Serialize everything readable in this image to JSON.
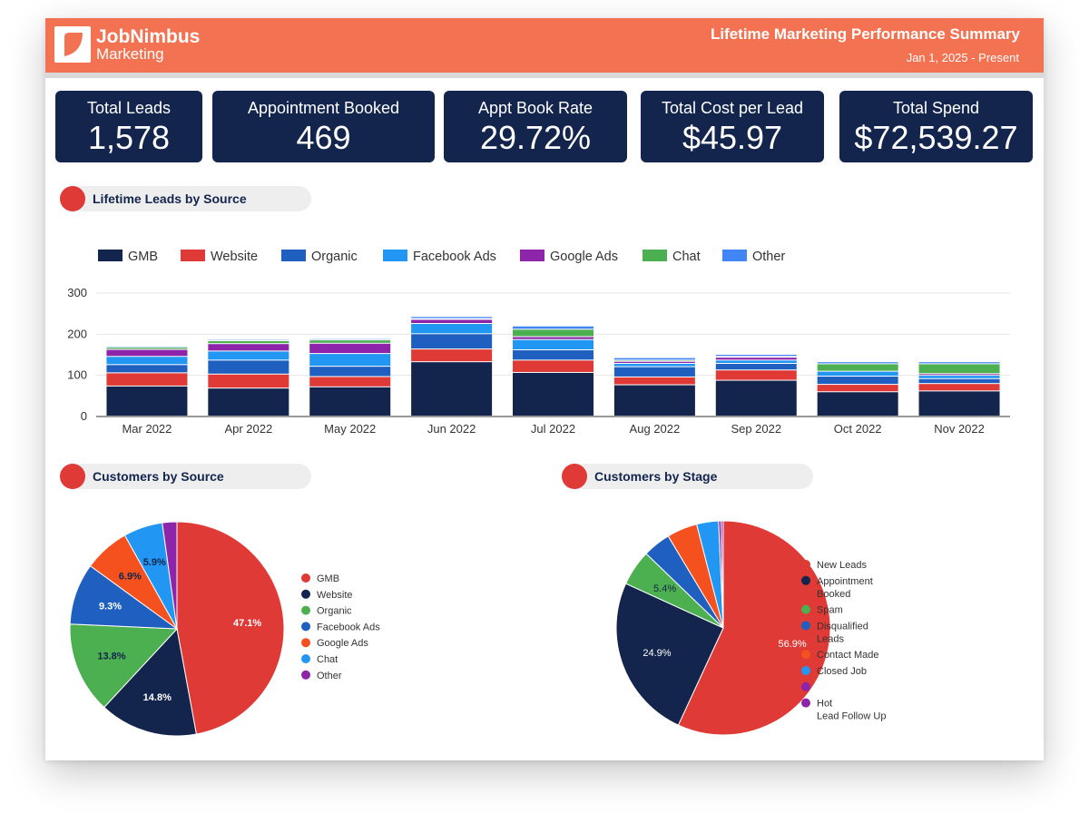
{
  "header": {
    "brand": "JobNimbus",
    "brand_sub": "Marketing",
    "title": "Lifetime Marketing Performance Summary",
    "date_range": "Jan 1, 2025 - Present"
  },
  "kpis": [
    {
      "label": "Total Leads",
      "value": "1,578"
    },
    {
      "label": "Appointment Booked",
      "value": "469"
    },
    {
      "label": "Appt Book Rate",
      "value": "29.72%"
    },
    {
      "label": "Total Cost per Lead",
      "value": "$45.97"
    },
    {
      "label": "Total Spend",
      "value": "$72,539.27"
    }
  ],
  "sections": {
    "leads_by_source": "Lifetime Leads by Source",
    "customers_by_source": "Customers by Source",
    "customers_by_stage": "Customers by Stage"
  },
  "colors": {
    "header": "#f37251",
    "kpi_bg": "#13254c",
    "section_dot": "#e03a36"
  },
  "chart_data": [
    {
      "type": "bar",
      "stacked": true,
      "categories": [
        "Mar 2022",
        "Apr 2022",
        "May 2022",
        "Jun 2022",
        "Jul 2022",
        "Aug 2022",
        "Sep 2022",
        "Oct 2022",
        "Nov 2022"
      ],
      "ylim": [
        0,
        300
      ],
      "yticks": [
        0,
        100,
        200,
        300
      ],
      "legend_position": "top-left",
      "grid": true,
      "series": [
        {
          "name": "GMB",
          "color": "#13254c",
          "values": [
            73,
            68,
            71,
            132,
            106,
            76,
            87,
            59,
            61
          ]
        },
        {
          "name": "Website",
          "color": "#e03a36",
          "values": [
            32,
            34,
            25,
            31,
            30,
            19,
            25,
            18,
            18
          ]
        },
        {
          "name": "Organic",
          "color": "#1f5fbf",
          "values": [
            20,
            34,
            25,
            37,
            25,
            25,
            16,
            20,
            12
          ]
        },
        {
          "name": "Facebook Ads",
          "color": "#2196f3",
          "values": [
            20,
            22,
            31,
            25,
            25,
            8,
            8,
            12,
            8
          ]
        },
        {
          "name": "Google Ads",
          "color": "#8e24aa",
          "values": [
            17,
            18,
            25,
            10,
            7,
            5,
            7,
            0,
            4
          ]
        },
        {
          "name": "Chat",
          "color": "#4caf50",
          "values": [
            5,
            7,
            8,
            2,
            18,
            3,
            2,
            18,
            24
          ]
        },
        {
          "name": "Other",
          "color": "#4285f4",
          "values": [
            3,
            3,
            3,
            5,
            8,
            6,
            5,
            5,
            5
          ]
        }
      ]
    },
    {
      "type": "pie",
      "labels": [
        "GMB",
        "Website",
        "Organic",
        "Facebook Ads",
        "Google Ads",
        "Chat",
        "Other"
      ],
      "values": [
        47.1,
        14.8,
        13.8,
        9.3,
        6.9,
        5.9,
        2.2
      ],
      "value_labels": [
        "47.1%",
        "14.8%",
        "13.8%",
        "9.3%",
        "6.9%",
        "5.9%",
        ""
      ],
      "colors": [
        "#e03a36",
        "#13254c",
        "#4caf50",
        "#1f5fbf",
        "#f4511e",
        "#2196f3",
        "#8e24aa"
      ],
      "legend_position": "right"
    },
    {
      "type": "pie",
      "labels": [
        "New Leads",
        "Appointment Booked",
        "Spam",
        "Disqualified Leads",
        "Contact Made",
        "Closed Job",
        "",
        "Hot Lead Follow Up"
      ],
      "values": [
        56.9,
        24.9,
        5.4,
        4.2,
        4.6,
        3.3,
        0.4,
        0.3
      ],
      "value_labels": [
        "56.9%",
        "24.9%",
        "5.4%",
        "",
        "",
        "",
        "",
        ""
      ],
      "colors": [
        "#e03a36",
        "#13254c",
        "#4caf50",
        "#1f5fbf",
        "#f4511e",
        "#2196f3",
        "#8e24aa",
        "#8e24aa"
      ],
      "legend_position": "right"
    }
  ]
}
